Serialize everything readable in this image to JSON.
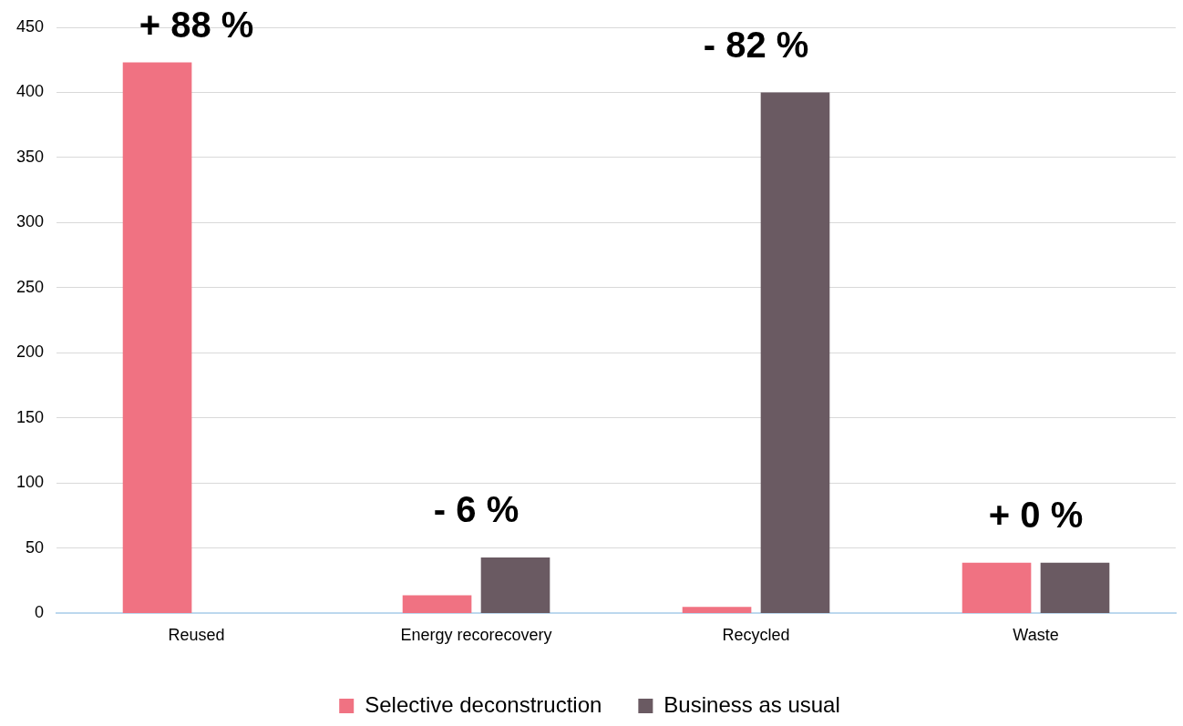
{
  "chart_data": {
    "type": "bar",
    "categories": [
      "Reused",
      "Energy recorecovery",
      "Recycled",
      "Waste"
    ],
    "series": [
      {
        "name": "Selective deconstruction",
        "color": "#f07282",
        "values": [
          423,
          14,
          5,
          39
        ]
      },
      {
        "name": "Business as usual",
        "color": "#6a5a62",
        "values": [
          0,
          43,
          400,
          39
        ]
      }
    ],
    "ylim": [
      0,
      450
    ],
    "yticks": [
      0,
      50,
      100,
      150,
      200,
      250,
      300,
      350,
      400,
      450
    ],
    "grid": "y",
    "legend": "bottom",
    "annotations": [
      "+ 88 %",
      "- 6 %",
      "- 82 %",
      "+ 0 %"
    ]
  }
}
